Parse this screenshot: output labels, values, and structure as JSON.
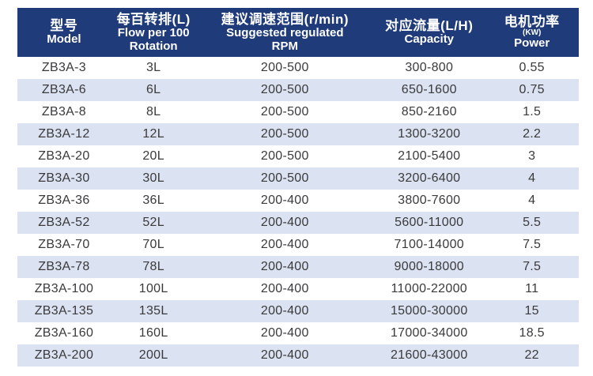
{
  "colors": {
    "header_bg": "#1f3b7a",
    "header_text": "#ffffff",
    "stripe_bg": "#dbe2f1",
    "row_bg": "#ffffff",
    "cell_text": "#3a3a3c",
    "page_bg": "#ffffff"
  },
  "table": {
    "header": {
      "model": {
        "zh": "型号",
        "en": "Model"
      },
      "flow": {
        "zh": "每百转排(L)",
        "en1": "Flow per 100",
        "en2": "Rotation"
      },
      "rpm": {
        "zh": "建议调速范围(r/min)",
        "en1": "Suggested regulated",
        "en2": "RPM"
      },
      "capacity": {
        "zh": "对应流量(L/H)",
        "en": "Capacity"
      },
      "power": {
        "zh": "电机功率",
        "kw": "(KW)",
        "en": "Power"
      }
    },
    "rows": [
      {
        "model": "ZB3A-3",
        "flow": "3L",
        "rpm": "200-500",
        "capacity": "300-800",
        "power": "0.55"
      },
      {
        "model": "ZB3A-6",
        "flow": "6L",
        "rpm": "200-500",
        "capacity": "650-1600",
        "power": "0.75"
      },
      {
        "model": "ZB3A-8",
        "flow": "8L",
        "rpm": "200-500",
        "capacity": "850-2160",
        "power": "1.5"
      },
      {
        "model": "ZB3A-12",
        "flow": "12L",
        "rpm": "200-500",
        "capacity": "1300-3200",
        "power": "2.2"
      },
      {
        "model": "ZB3A-20",
        "flow": "20L",
        "rpm": "200-500",
        "capacity": "2100-5400",
        "power": "3"
      },
      {
        "model": "ZB3A-30",
        "flow": "30L",
        "rpm": "200-500",
        "capacity": "3200-6400",
        "power": "4"
      },
      {
        "model": "ZB3A-36",
        "flow": "36L",
        "rpm": "200-400",
        "capacity": "3800-7600",
        "power": "4"
      },
      {
        "model": "ZB3A-52",
        "flow": "52L",
        "rpm": "200-400",
        "capacity": "5600-11000",
        "power": "5.5"
      },
      {
        "model": "ZB3A-70",
        "flow": "70L",
        "rpm": "200-400",
        "capacity": "7100-14000",
        "power": "7.5"
      },
      {
        "model": "ZB3A-78",
        "flow": "78L",
        "rpm": "200-400",
        "capacity": "9000-18000",
        "power": "7.5"
      },
      {
        "model": "ZB3A-100",
        "flow": "100L",
        "rpm": "200-400",
        "capacity": "11000-22000",
        "power": "11"
      },
      {
        "model": "ZB3A-135",
        "flow": "135L",
        "rpm": "200-400",
        "capacity": "15000-30000",
        "power": "15"
      },
      {
        "model": "ZB3A-160",
        "flow": "160L",
        "rpm": "200-400",
        "capacity": "17000-34000",
        "power": "18.5"
      },
      {
        "model": "ZB3A-200",
        "flow": "200L",
        "rpm": "200-400",
        "capacity": "21600-43000",
        "power": "22"
      }
    ]
  }
}
